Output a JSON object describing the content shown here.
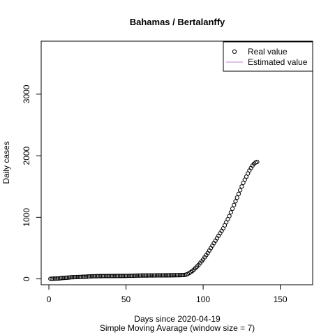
{
  "chart_data": {
    "type": "scatter",
    "title": "Bahamas / Bertalanffy",
    "xlabel": "Days since 2020-04-19",
    "xlabel2": "Simple Moving Avarage (window size = 7)",
    "ylabel": "Daily cases",
    "xlim": [
      -5,
      171
    ],
    "ylim": [
      -95,
      3860
    ],
    "x_ticks": [
      0,
      50,
      100,
      150
    ],
    "y_ticks": [
      0,
      1000,
      2000,
      3000
    ],
    "grid": false,
    "legend_position": "top-right",
    "legend": [
      {
        "label": "Real value",
        "symbol": "open-circle"
      },
      {
        "label": "Estimated value",
        "symbol": "line",
        "color": "#c080d0"
      }
    ],
    "series": [
      {
        "name": "Real value",
        "x": [
          1,
          2,
          3,
          4,
          5,
          6,
          7,
          8,
          9,
          10,
          11,
          12,
          13,
          14,
          15,
          16,
          17,
          18,
          19,
          20,
          21,
          22,
          23,
          24,
          25,
          26,
          27,
          28,
          29,
          30,
          31,
          32,
          33,
          34,
          35,
          36,
          37,
          38,
          39,
          40,
          41,
          42,
          43,
          44,
          45,
          46,
          47,
          48,
          49,
          50,
          51,
          52,
          53,
          54,
          55,
          56,
          57,
          58,
          59,
          60,
          61,
          62,
          63,
          64,
          65,
          66,
          67,
          68,
          69,
          70,
          71,
          72,
          73,
          74,
          75,
          76,
          77,
          78,
          79,
          80,
          81,
          82,
          83,
          84,
          85,
          86,
          87,
          88,
          89,
          90,
          91,
          92,
          93,
          94,
          95,
          96,
          97,
          98,
          99,
          100,
          101,
          102,
          103,
          104,
          105,
          106,
          107,
          108,
          109,
          110,
          111,
          112,
          113,
          114,
          115,
          116,
          117,
          118,
          119,
          120,
          121,
          122,
          123,
          124,
          125,
          126,
          127,
          128,
          129,
          130,
          131,
          132,
          133,
          134,
          135
        ],
        "y": [
          2,
          3,
          4,
          5,
          6,
          7,
          8,
          12,
          14,
          16,
          18,
          20,
          22,
          25,
          27,
          28,
          29,
          30,
          31,
          32,
          33,
          34,
          35,
          36,
          38,
          40,
          41,
          42,
          43,
          43,
          44,
          44,
          45,
          45,
          45,
          46,
          46,
          46,
          46,
          47,
          47,
          47,
          47,
          47,
          48,
          48,
          48,
          48,
          48,
          49,
          49,
          50,
          50,
          50,
          51,
          52,
          53,
          54,
          54,
          55,
          55,
          55,
          55,
          55,
          56,
          56,
          56,
          56,
          56,
          57,
          57,
          57,
          57,
          57,
          58,
          58,
          58,
          58,
          59,
          59,
          59,
          60,
          60,
          61,
          61,
          62,
          63,
          65,
          70,
          80,
          95,
          110,
          130,
          150,
          175,
          200,
          225,
          255,
          285,
          315,
          350,
          385,
          420,
          460,
          500,
          540,
          580,
          620,
          660,
          700,
          740,
          780,
          820,
          870,
          920,
          970,
          1020,
          1080,
          1140,
          1200,
          1260,
          1320,
          1380,
          1440,
          1500,
          1560,
          1610,
          1660,
          1710,
          1760,
          1800,
          1840,
          1870,
          1890,
          1900
        ]
      }
    ]
  }
}
